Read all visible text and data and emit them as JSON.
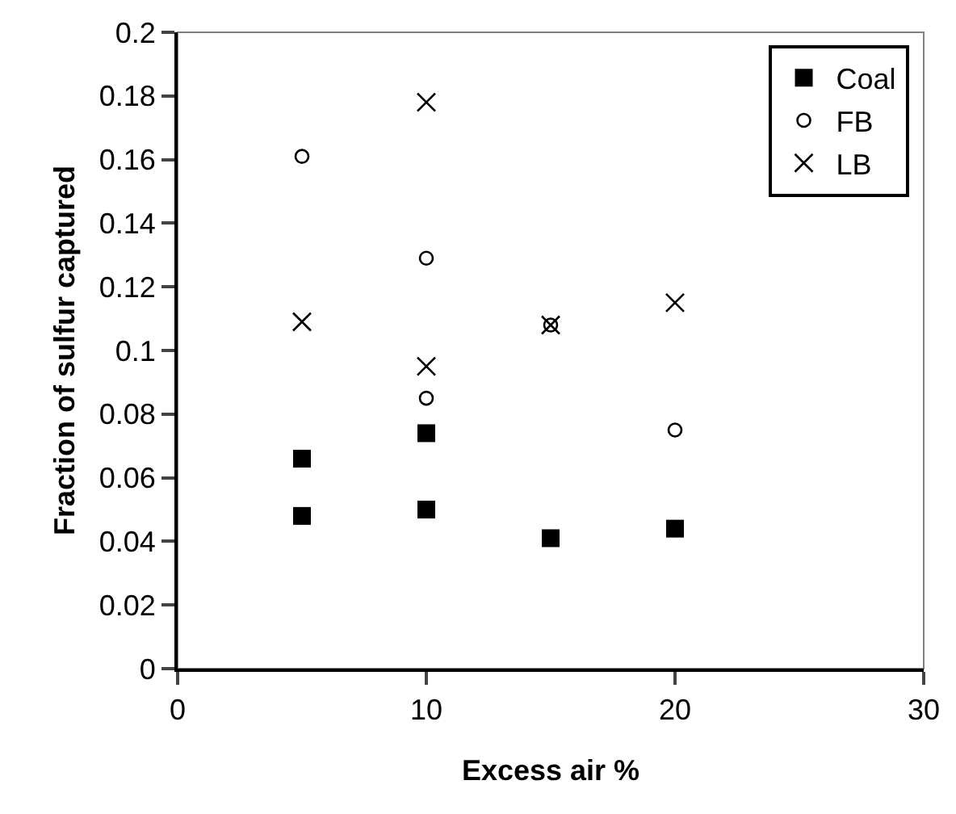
{
  "chart_data": {
    "type": "scatter",
    "xlabel": "Excess air %",
    "ylabel": "Fraction of sulfur captured",
    "xlim": [
      0,
      30
    ],
    "xticks": [
      0,
      10,
      20,
      30
    ],
    "ylim": [
      0,
      0.2
    ],
    "yticks": [
      0,
      0.02,
      0.04,
      0.06,
      0.08,
      0.1,
      0.12,
      0.14,
      0.16,
      0.18,
      0.2
    ],
    "grid": false,
    "legend": "top right",
    "series": [
      {
        "name": "Coal",
        "color": "#000000",
        "marker": "square",
        "x": [
          5,
          5,
          10,
          10,
          15,
          20
        ],
        "values": [
          0.066,
          0.048,
          0.074,
          0.05,
          0.041,
          0.044
        ]
      },
      {
        "name": "FB",
        "color": "#000000",
        "marker": "circle",
        "x": [
          5,
          10,
          10,
          15,
          20
        ],
        "values": [
          0.161,
          0.129,
          0.085,
          0.108,
          0.075
        ]
      },
      {
        "name": "LB",
        "color": "#000000",
        "marker": "cross",
        "x": [
          5,
          10,
          10,
          15,
          20
        ],
        "values": [
          0.109,
          0.178,
          0.095,
          0.108,
          0.115
        ]
      }
    ]
  }
}
